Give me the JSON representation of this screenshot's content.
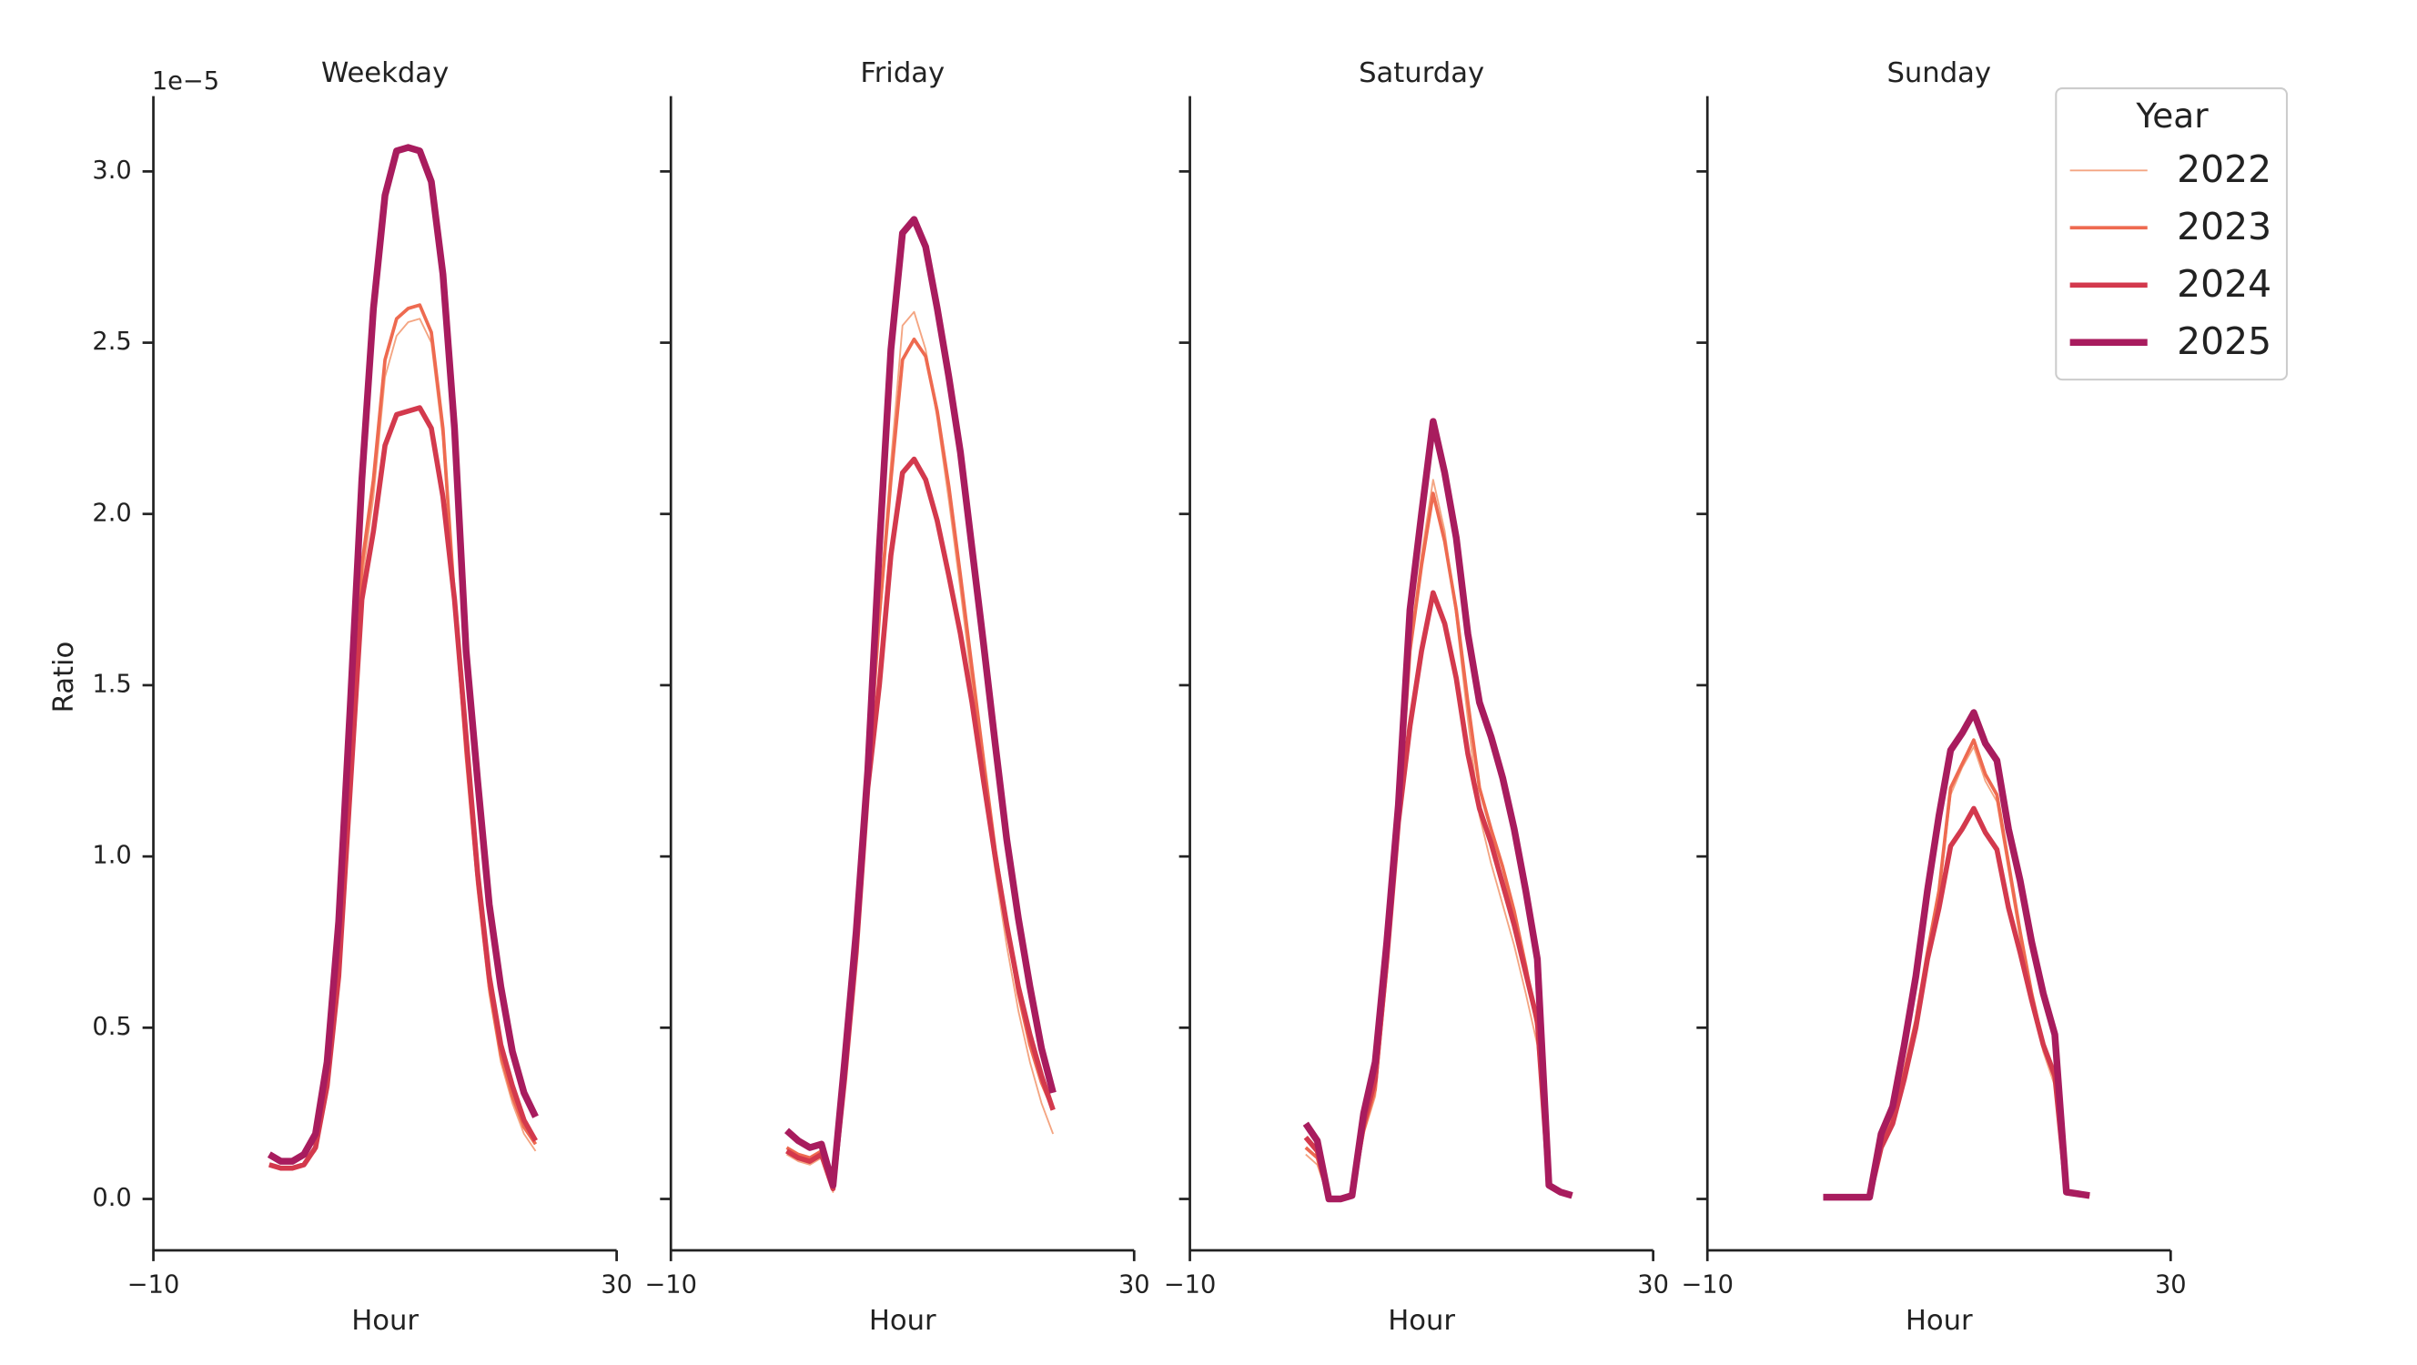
{
  "chart_data": [
    {
      "type": "line",
      "title": "Weekday",
      "xlabel": "Hour",
      "ylabel": "Ratio",
      "y_offset_label": "1e−5",
      "x": [
        0,
        1,
        2,
        3,
        4,
        5,
        6,
        7,
        8,
        9,
        10,
        11,
        12,
        13,
        14,
        15,
        16,
        17,
        18,
        19,
        20,
        21,
        22,
        23
      ],
      "xlim": [
        -10,
        30
      ],
      "xticks": [
        {
          "value": -10,
          "label": "−10"
        },
        30
      ],
      "ylim": [
        -0.15,
        3.22
      ],
      "yticks": [
        {
          "value": 0,
          "label": "0.0"
        },
        0.5,
        {
          "value": 1,
          "label": "1.0"
        },
        1.5,
        {
          "value": 2,
          "label": "2.0"
        },
        2.5,
        {
          "value": 3,
          "label": "3.0"
        }
      ],
      "series": [
        {
          "name": "2022",
          "color": "#f4a582",
          "values": [
            0.1,
            0.09,
            0.09,
            0.1,
            0.14,
            0.32,
            0.64,
            1.22,
            1.8,
            2.05,
            2.4,
            2.52,
            2.56,
            2.57,
            2.5,
            2.22,
            1.72,
            1.28,
            0.9,
            0.6,
            0.4,
            0.28,
            0.19,
            0.14
          ]
        },
        {
          "name": "2023",
          "color": "#ee6a50",
          "values": [
            0.1,
            0.09,
            0.09,
            0.1,
            0.15,
            0.33,
            0.65,
            1.25,
            1.85,
            2.1,
            2.45,
            2.57,
            2.6,
            2.61,
            2.53,
            2.25,
            1.75,
            1.3,
            0.92,
            0.62,
            0.42,
            0.3,
            0.21,
            0.16
          ]
        },
        {
          "name": "2024",
          "color": "#d3394d",
          "values": [
            0.1,
            0.09,
            0.09,
            0.1,
            0.15,
            0.33,
            0.65,
            1.2,
            1.75,
            1.95,
            2.2,
            2.29,
            2.3,
            2.31,
            2.25,
            2.05,
            1.75,
            1.35,
            0.95,
            0.65,
            0.45,
            0.33,
            0.23,
            0.17
          ]
        },
        {
          "name": "2025",
          "color": "#a81c5e",
          "values": [
            0.13,
            0.11,
            0.11,
            0.13,
            0.19,
            0.4,
            0.81,
            1.44,
            2.1,
            2.6,
            2.93,
            3.06,
            3.07,
            3.06,
            2.97,
            2.7,
            2.25,
            1.6,
            1.22,
            0.86,
            0.62,
            0.43,
            0.31,
            0.24
          ]
        }
      ]
    },
    {
      "type": "line",
      "title": "Friday",
      "xlabel": "Hour",
      "x": [
        0,
        1,
        2,
        3,
        4,
        5,
        6,
        7,
        8,
        9,
        10,
        11,
        12,
        13,
        14,
        15,
        16,
        17,
        18,
        19,
        20,
        21,
        22,
        23
      ],
      "xlim": [
        -10,
        30
      ],
      "xticks": [
        {
          "value": -10,
          "label": "−10"
        },
        30
      ],
      "ylim": [
        -0.15,
        3.22
      ],
      "yticks": [
        0,
        0.5,
        1,
        1.5,
        2,
        2.5,
        3
      ],
      "series": [
        {
          "name": "2022",
          "color": "#f4a582",
          "values": [
            0.13,
            0.11,
            0.1,
            0.12,
            0.02,
            0.35,
            0.72,
            1.2,
            1.72,
            2.15,
            2.55,
            2.59,
            2.48,
            2.28,
            2.04,
            1.78,
            1.5,
            1.22,
            0.96,
            0.74,
            0.55,
            0.4,
            0.28,
            0.19
          ]
        },
        {
          "name": "2023",
          "color": "#ee6a50",
          "values": [
            0.15,
            0.13,
            0.12,
            0.14,
            0.03,
            0.36,
            0.74,
            1.22,
            1.7,
            2.1,
            2.45,
            2.51,
            2.46,
            2.3,
            2.08,
            1.82,
            1.55,
            1.28,
            1.02,
            0.8,
            0.6,
            0.45,
            0.34,
            0.26
          ]
        },
        {
          "name": "2024",
          "color": "#d3394d",
          "values": [
            0.14,
            0.12,
            0.11,
            0.13,
            0.03,
            0.35,
            0.72,
            1.2,
            1.5,
            1.88,
            2.12,
            2.16,
            2.1,
            1.98,
            1.82,
            1.65,
            1.45,
            1.22,
            1.0,
            0.8,
            0.62,
            0.48,
            0.36,
            0.26
          ]
        },
        {
          "name": "2025",
          "color": "#a81c5e",
          "values": [
            0.2,
            0.17,
            0.15,
            0.16,
            0.04,
            0.4,
            0.78,
            1.25,
            1.9,
            2.48,
            2.82,
            2.86,
            2.78,
            2.6,
            2.4,
            2.18,
            1.9,
            1.62,
            1.33,
            1.05,
            0.82,
            0.62,
            0.44,
            0.31
          ]
        }
      ]
    },
    {
      "type": "line",
      "title": "Saturday",
      "xlabel": "Hour",
      "x": [
        0,
        1,
        2,
        3,
        4,
        5,
        6,
        7,
        8,
        9,
        10,
        11,
        12,
        13,
        14,
        15,
        16,
        17,
        18,
        19,
        20,
        21,
        22,
        23
      ],
      "xlim": [
        -10,
        30
      ],
      "xticks": [
        {
          "value": -10,
          "label": "−10"
        },
        30
      ],
      "ylim": [
        -0.15,
        3.22
      ],
      "yticks": [
        0,
        0.5,
        1,
        1.5,
        2,
        2.5,
        3
      ],
      "series": [
        {
          "name": "2022",
          "color": "#f4a582",
          "values": [
            0.13,
            0.1,
            0,
            0,
            0.01,
            0.19,
            0.3,
            0.66,
            1.08,
            1.62,
            1.88,
            2.1,
            1.95,
            1.7,
            1.4,
            1.12,
            0.98,
            0.86,
            0.74,
            0.6,
            0.45,
            0.04,
            0.02,
            0.01
          ]
        },
        {
          "name": "2023",
          "color": "#ee6a50",
          "values": [
            0.15,
            0.12,
            0,
            0,
            0.01,
            0.2,
            0.32,
            0.68,
            1.1,
            1.6,
            1.85,
            2.06,
            1.92,
            1.72,
            1.45,
            1.2,
            1.08,
            0.97,
            0.84,
            0.68,
            0.5,
            0.04,
            0.02,
            0.01
          ]
        },
        {
          "name": "2024",
          "color": "#d3394d",
          "values": [
            0.18,
            0.14,
            0,
            0,
            0.01,
            0.22,
            0.35,
            0.7,
            1.1,
            1.38,
            1.6,
            1.77,
            1.68,
            1.52,
            1.3,
            1.14,
            1.04,
            0.92,
            0.8,
            0.66,
            0.52,
            0.04,
            0.02,
            0.01
          ]
        },
        {
          "name": "2025",
          "color": "#a81c5e",
          "values": [
            0.22,
            0.17,
            0,
            0,
            0.01,
            0.25,
            0.4,
            0.75,
            1.15,
            1.72,
            2.0,
            2.27,
            2.12,
            1.93,
            1.65,
            1.45,
            1.35,
            1.23,
            1.08,
            0.9,
            0.7,
            0.04,
            0.02,
            0.01
          ]
        }
      ]
    },
    {
      "type": "line",
      "title": "Sunday",
      "xlabel": "Hour",
      "legend_title": "Year",
      "legend": "upper right",
      "x": [
        0,
        1,
        2,
        3,
        4,
        5,
        6,
        7,
        8,
        9,
        10,
        11,
        12,
        13,
        14,
        15,
        16,
        17,
        18,
        19,
        20,
        21,
        22,
        23
      ],
      "xlim": [
        -10,
        30
      ],
      "xticks": [
        {
          "value": -10,
          "label": "−10"
        },
        30
      ],
      "ylim": [
        -0.15,
        3.22
      ],
      "yticks": [
        0,
        0.5,
        1,
        1.5,
        2,
        2.5,
        3
      ],
      "series": [
        {
          "name": "2022",
          "color": "#f4a582",
          "values": [
            0.005,
            0.005,
            0.005,
            0.005,
            0.005,
            0.16,
            0.23,
            0.36,
            0.5,
            0.7,
            0.88,
            1.18,
            1.26,
            1.32,
            1.22,
            1.16,
            0.96,
            0.76,
            0.58,
            0.43,
            0.33,
            0.02,
            0.015,
            0.01
          ]
        },
        {
          "name": "2023",
          "color": "#ee6a50",
          "values": [
            0.005,
            0.005,
            0.005,
            0.005,
            0.005,
            0.16,
            0.24,
            0.37,
            0.52,
            0.72,
            0.9,
            1.2,
            1.27,
            1.34,
            1.24,
            1.18,
            0.98,
            0.78,
            0.6,
            0.45,
            0.35,
            0.02,
            0.015,
            0.01
          ]
        },
        {
          "name": "2024",
          "color": "#d3394d",
          "values": [
            0.005,
            0.005,
            0.005,
            0.005,
            0.005,
            0.15,
            0.22,
            0.35,
            0.5,
            0.7,
            0.85,
            1.03,
            1.08,
            1.14,
            1.07,
            1.02,
            0.85,
            0.72,
            0.58,
            0.45,
            0.36,
            0.02,
            0.015,
            0.01
          ]
        },
        {
          "name": "2025",
          "color": "#a81c5e",
          "values": [
            0.005,
            0.005,
            0.005,
            0.005,
            0.005,
            0.19,
            0.27,
            0.45,
            0.65,
            0.9,
            1.12,
            1.31,
            1.36,
            1.42,
            1.33,
            1.28,
            1.08,
            0.93,
            0.75,
            0.6,
            0.48,
            0.02,
            0.015,
            0.01
          ]
        }
      ]
    }
  ]
}
